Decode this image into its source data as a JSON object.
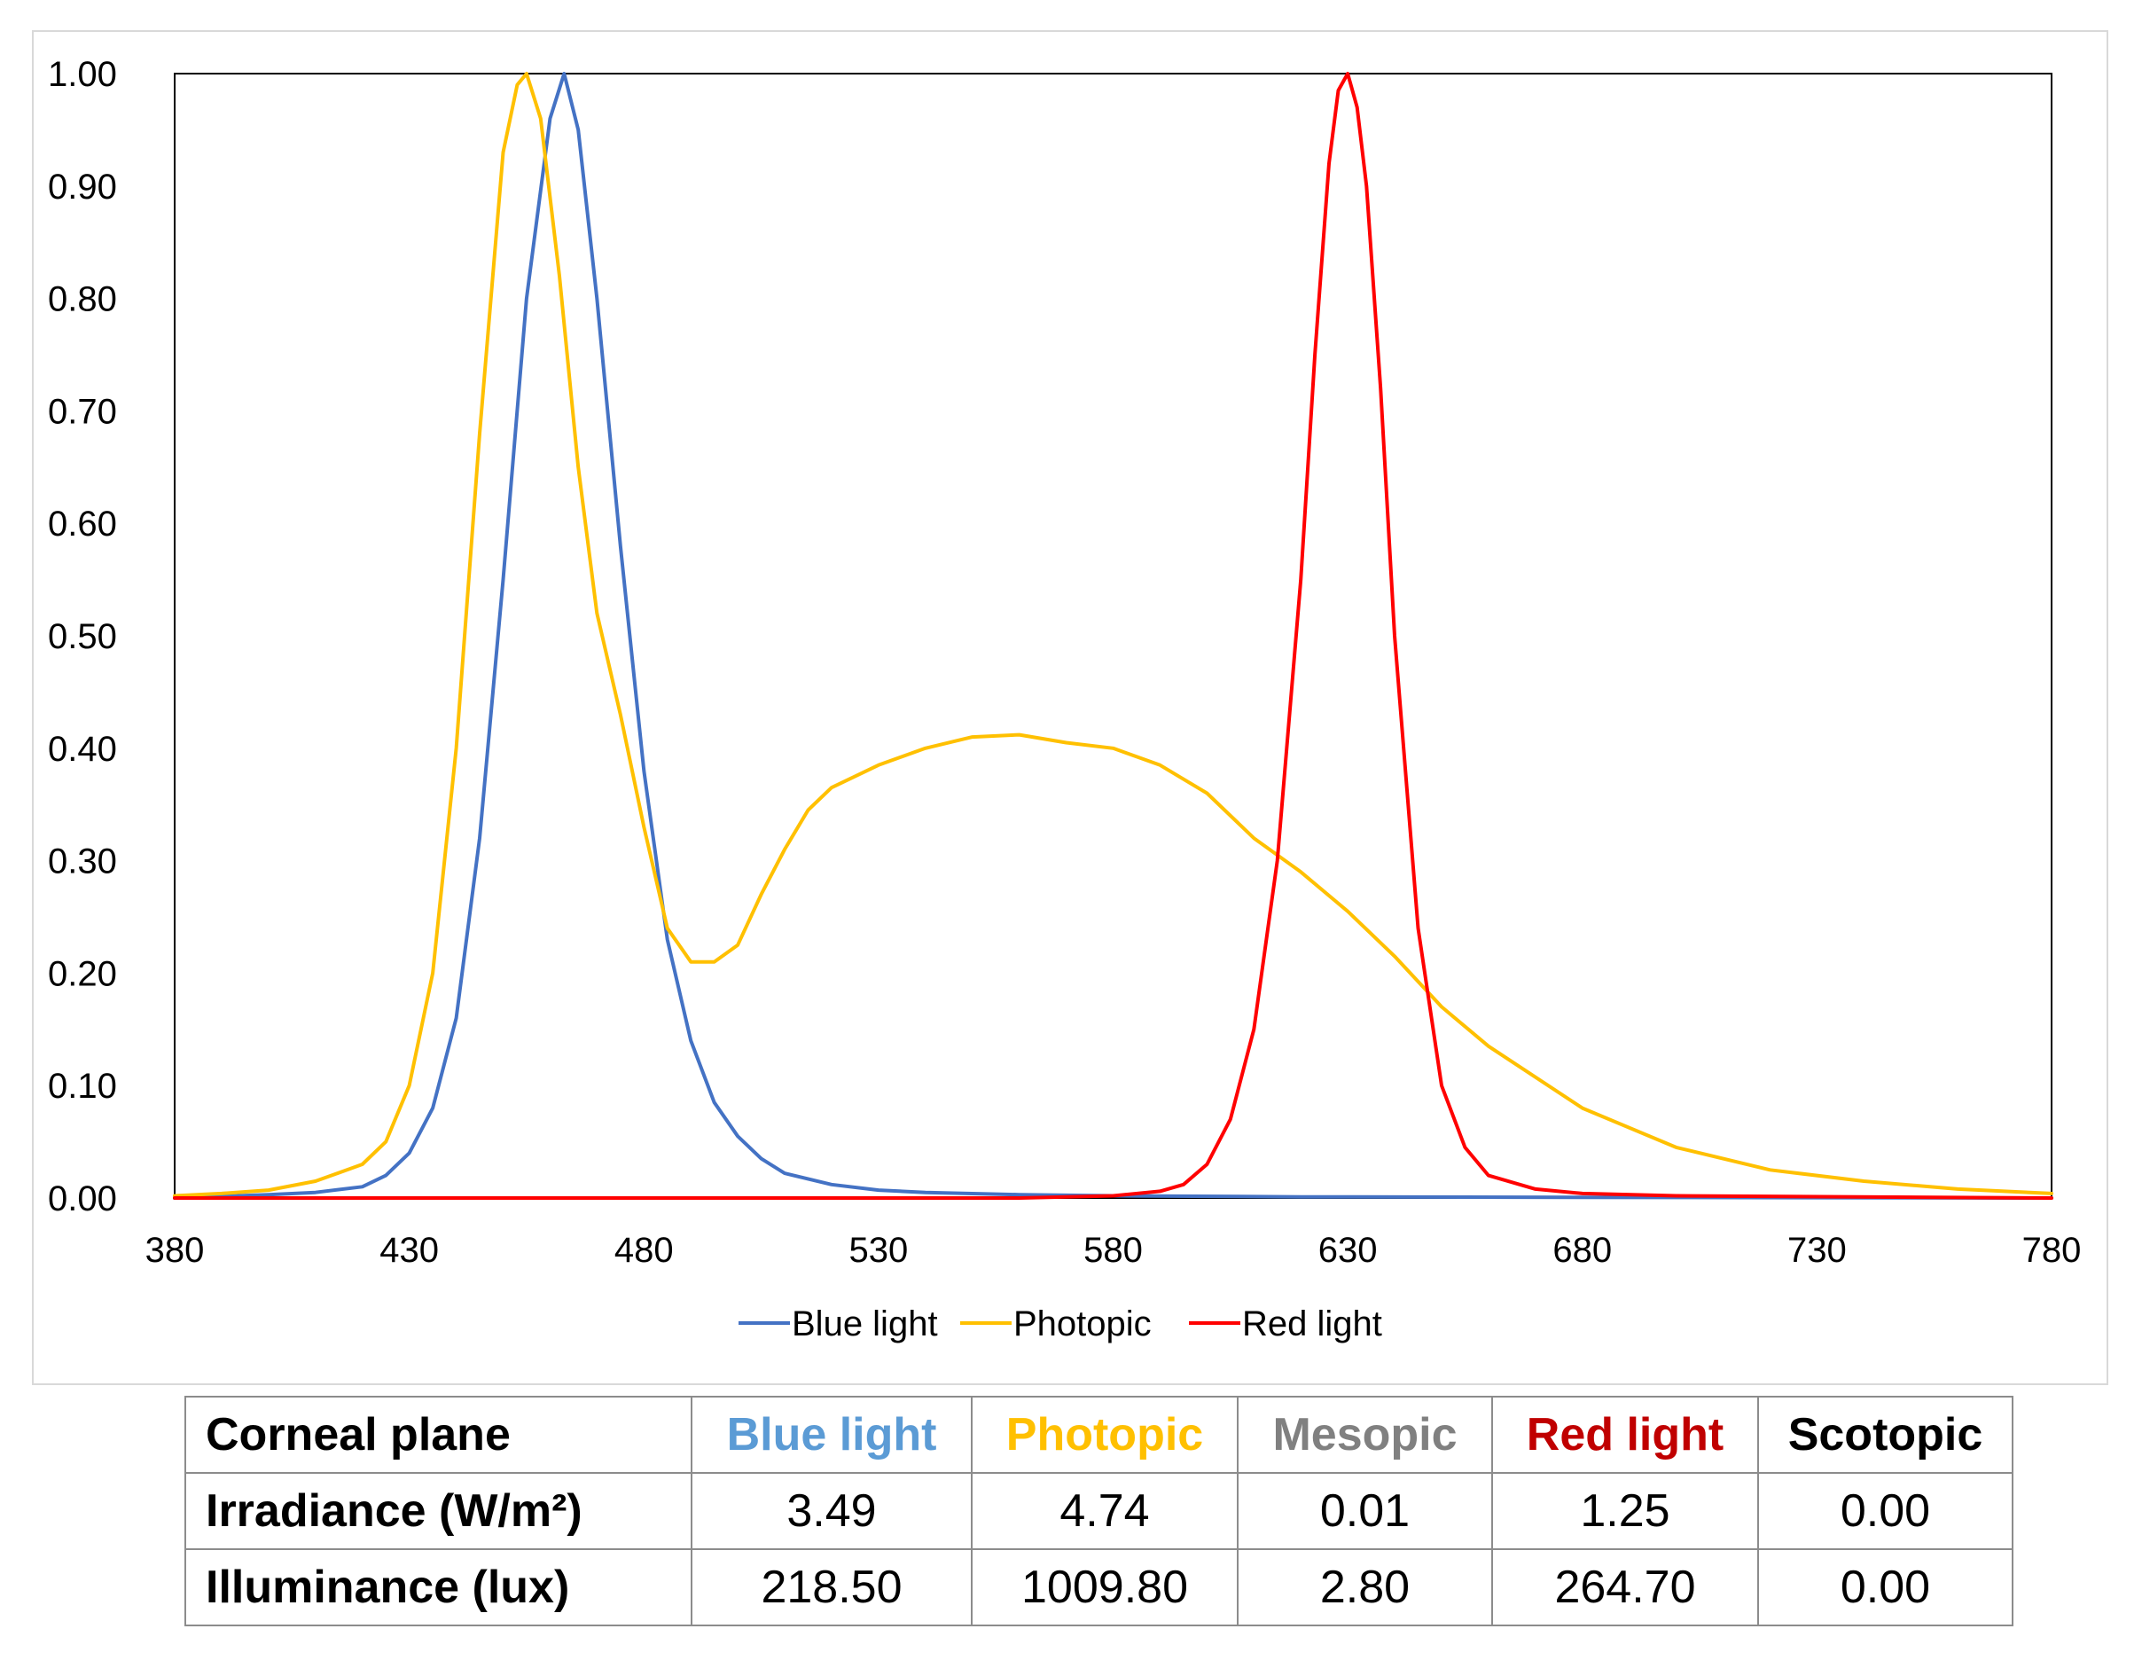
{
  "chart_data": {
    "type": "line",
    "xlim": [
      380,
      780
    ],
    "ylim": [
      0,
      1
    ],
    "x_ticks": [
      "380",
      "430",
      "480",
      "530",
      "580",
      "630",
      "680",
      "730",
      "780"
    ],
    "y_ticks": [
      "0.00",
      "0.10",
      "0.20",
      "0.30",
      "0.40",
      "0.50",
      "0.60",
      "0.70",
      "0.80",
      "0.90",
      "1.00"
    ],
    "xlabel": "",
    "ylabel": "",
    "grid": false,
    "legend_position": "bottom",
    "series": [
      {
        "name": "Blue light",
        "color": "#4472c4",
        "x": [
          380,
          400,
          410,
          420,
          425,
          430,
          435,
          440,
          445,
          450,
          455,
          460,
          463,
          466,
          470,
          475,
          480,
          485,
          490,
          495,
          500,
          505,
          510,
          520,
          530,
          540,
          560,
          580,
          620,
          700,
          780
        ],
        "y": [
          0.0,
          0.003,
          0.005,
          0.01,
          0.02,
          0.04,
          0.08,
          0.16,
          0.32,
          0.55,
          0.8,
          0.96,
          1.0,
          0.95,
          0.8,
          0.58,
          0.38,
          0.23,
          0.14,
          0.085,
          0.055,
          0.035,
          0.022,
          0.012,
          0.007,
          0.005,
          0.003,
          0.002,
          0.001,
          0.0005,
          0.0
        ]
      },
      {
        "name": "Photopic",
        "color": "#ffc000",
        "x": [
          380,
          390,
          400,
          410,
          420,
          425,
          430,
          435,
          440,
          445,
          450,
          453,
          455,
          458,
          462,
          466,
          470,
          475,
          480,
          485,
          490,
          495,
          500,
          505,
          510,
          515,
          520,
          530,
          540,
          550,
          560,
          570,
          580,
          590,
          600,
          610,
          620,
          630,
          640,
          650,
          660,
          680,
          700,
          720,
          740,
          760,
          780
        ],
        "y": [
          0.002,
          0.004,
          0.007,
          0.015,
          0.03,
          0.05,
          0.1,
          0.2,
          0.4,
          0.68,
          0.93,
          0.99,
          1.0,
          0.96,
          0.82,
          0.65,
          0.52,
          0.43,
          0.33,
          0.24,
          0.21,
          0.21,
          0.225,
          0.27,
          0.31,
          0.345,
          0.365,
          0.385,
          0.4,
          0.41,
          0.412,
          0.405,
          0.4,
          0.385,
          0.36,
          0.32,
          0.29,
          0.255,
          0.215,
          0.17,
          0.135,
          0.08,
          0.045,
          0.025,
          0.015,
          0.008,
          0.004
        ]
      },
      {
        "name": "Red light",
        "color": "#ff0000",
        "x": [
          380,
          560,
          580,
          590,
          595,
          600,
          605,
          610,
          615,
          620,
          623,
          626,
          628,
          630,
          632,
          634,
          637,
          640,
          645,
          650,
          655,
          660,
          670,
          680,
          700,
          780
        ],
        "y": [
          0.0,
          0.0,
          0.002,
          0.006,
          0.012,
          0.03,
          0.07,
          0.15,
          0.3,
          0.55,
          0.75,
          0.92,
          0.985,
          1.0,
          0.97,
          0.9,
          0.72,
          0.5,
          0.24,
          0.1,
          0.045,
          0.02,
          0.008,
          0.004,
          0.002,
          0.0
        ]
      }
    ]
  },
  "table": {
    "header": [
      "Corneal plane",
      "Blue light",
      "Photopic",
      "Mesopic",
      "Red light",
      "Scotopic"
    ],
    "header_colors": [
      "#000000",
      "#5b9bd5",
      "#ffc000",
      "#808080",
      "#c00000",
      "#000000"
    ],
    "rows": [
      {
        "label": "Irradiance (W/m²)",
        "values": [
          "3.49",
          "4.74",
          "0.01",
          "1.25",
          "0.00"
        ]
      },
      {
        "label": "Illuminance (lux)",
        "values": [
          "218.50",
          "1009.80",
          "2.80",
          "264.70",
          "0.00"
        ]
      }
    ]
  }
}
